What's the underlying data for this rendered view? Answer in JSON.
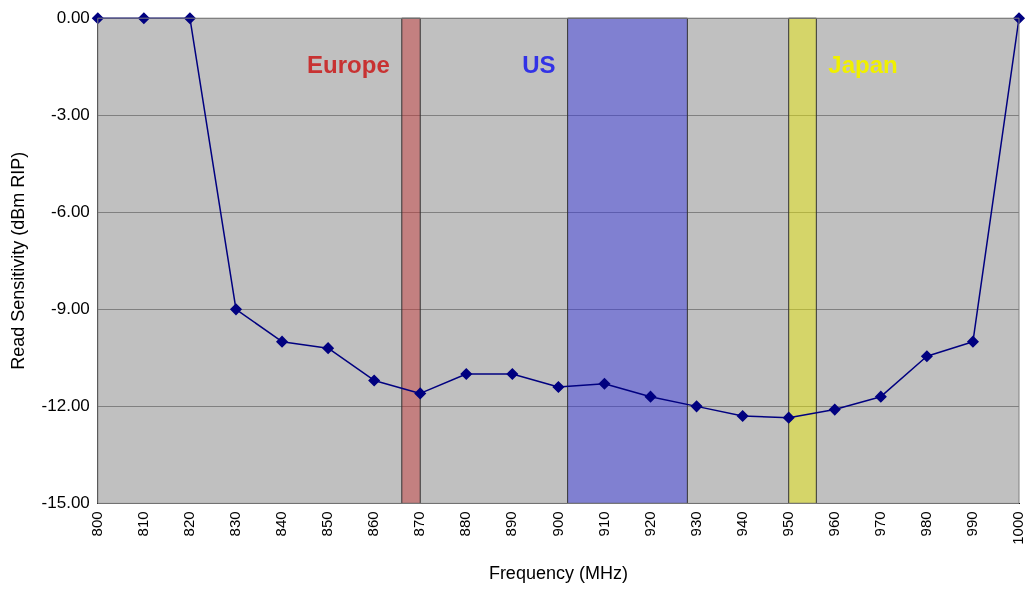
{
  "chart_data": {
    "type": "line",
    "xlabel": "Frequency (MHz)",
    "ylabel": "Read Sensitivity (dBm RIP)",
    "x": [
      800,
      810,
      820,
      830,
      840,
      850,
      860,
      870,
      880,
      890,
      900,
      910,
      920,
      930,
      940,
      950,
      960,
      970,
      980,
      990,
      1000
    ],
    "series": [
      {
        "color": "#000080",
        "values": [
          0,
          0,
          0,
          -9.0,
          -10.0,
          -10.2,
          -11.2,
          -11.6,
          -11.0,
          -11.0,
          -11.4,
          -11.3,
          -11.7,
          -12.0,
          -12.3,
          -12.35,
          -12.1,
          -11.7,
          -10.45,
          -10.0,
          0
        ]
      }
    ],
    "xlim": [
      800,
      1000
    ],
    "xticks": [
      800,
      810,
      820,
      830,
      840,
      850,
      860,
      870,
      880,
      890,
      900,
      910,
      920,
      930,
      940,
      950,
      960,
      970,
      980,
      990,
      1000
    ],
    "ylim": [
      -15,
      0
    ],
    "yticks": [
      {
        "value": -15,
        "label": "-15.00"
      },
      {
        "value": -12,
        "label": "-12.00"
      },
      {
        "value": -9,
        "label": "-9.00"
      },
      {
        "value": -6,
        "label": "-6.00"
      },
      {
        "value": -3,
        "label": "-3.00"
      },
      {
        "value": 0,
        "label": "0.00"
      }
    ],
    "bands": [
      {
        "axis": "x",
        "from": 866,
        "to": 870,
        "label": "Europe",
        "color": "#c83232"
      },
      {
        "axis": "x",
        "from": 902,
        "to": 928,
        "label": "US",
        "color": "#3232e6"
      },
      {
        "axis": "x",
        "from": 950,
        "to": 956,
        "label": "Japan",
        "color": "#f0f000"
      }
    ],
    "grid": "y",
    "legend": false,
    "marker": "diamond",
    "line_style": "solid"
  }
}
